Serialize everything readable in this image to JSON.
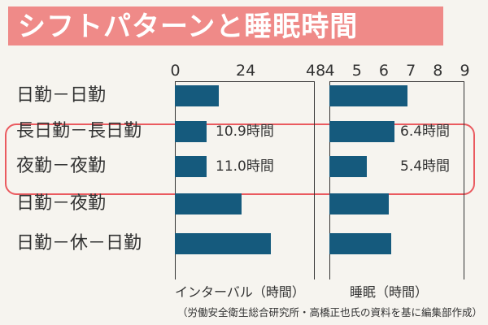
{
  "title": "シフトパターンと睡眠時間",
  "source_note": "（労働安全衛生総合研究所・高橋正也氏の資料を基に編集部作成）",
  "colors": {
    "bar": "#155a7d",
    "title_bar": "#ef8a88",
    "highlight": "#ea5a5f",
    "background": "#f6f4ef"
  },
  "chart_data": [
    {
      "type": "bar",
      "orientation": "horizontal",
      "xlabel": "インターバル（時間）",
      "xlim": [
        0,
        48
      ],
      "ticks": [
        "0",
        "24",
        "48"
      ],
      "categories": [
        "日勤－日勤",
        "長日勤－長日勤",
        "夜勤－夜勤",
        "日勤－夜勤",
        "日勤－休－日勤"
      ],
      "values": [
        15,
        10.9,
        11.0,
        23,
        33
      ],
      "data_labels": [
        "",
        "10.9時間",
        "11.0時間",
        "",
        ""
      ]
    },
    {
      "type": "bar",
      "orientation": "horizontal",
      "xlabel": "睡眠（時間）",
      "xlim": [
        4,
        9
      ],
      "ticks": [
        "4",
        "5",
        "6",
        "7",
        "8",
        "9"
      ],
      "categories": [
        "日勤－日勤",
        "長日勤－長日勤",
        "夜勤－夜勤",
        "日勤－夜勤",
        "日勤－休－日勤"
      ],
      "values": [
        6.9,
        6.4,
        5.4,
        6.2,
        6.3
      ],
      "data_labels": [
        "",
        "6.4時間",
        "5.4時間",
        "",
        ""
      ]
    }
  ]
}
